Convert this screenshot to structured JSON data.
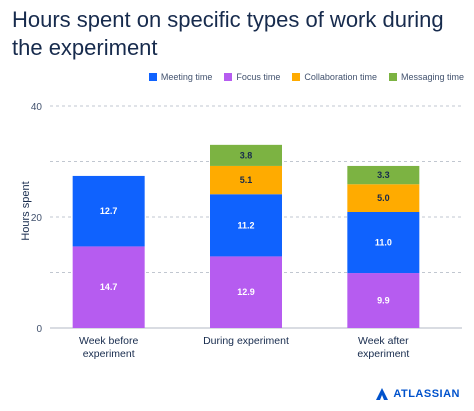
{
  "chart_data": {
    "type": "bar",
    "stacked": true,
    "title": "Hours spent on specific types of work during the experiment",
    "ylabel": "Hours spent",
    "ylim": [
      0,
      40
    ],
    "yticks": [
      "0",
      "20",
      "40"
    ],
    "grid": true,
    "legend_placement": "top-right",
    "categories": [
      "Week before experiment",
      "During experiment",
      "Week after experiment"
    ],
    "series": [
      {
        "name": "Focus time",
        "color": "#b65cf0",
        "values": [
          14.7,
          12.9,
          9.9
        ],
        "labels": [
          "14.7",
          "12.9",
          "9.9"
        ]
      },
      {
        "name": "Meeting time",
        "color": "#0f62fe",
        "values": [
          12.7,
          11.2,
          11.0
        ],
        "labels": [
          "12.7",
          "11.2",
          "11.0"
        ]
      },
      {
        "name": "Collaboration time",
        "color": "#ffab00",
        "values": [
          0,
          5.1,
          5.0
        ],
        "labels": [
          "",
          "5.1",
          "5.0"
        ]
      },
      {
        "name": "Messaging time",
        "color": "#7cb342",
        "values": [
          0,
          3.8,
          3.3
        ],
        "labels": [
          "",
          "3.8",
          "3.3"
        ]
      }
    ],
    "legend_order": [
      "Meeting time",
      "Focus time",
      "Collaboration time",
      "Messaging time"
    ]
  },
  "brand": {
    "name": "ATLASSIAN",
    "icon": "atlassian-logo-icon",
    "color": "#0052cc"
  }
}
